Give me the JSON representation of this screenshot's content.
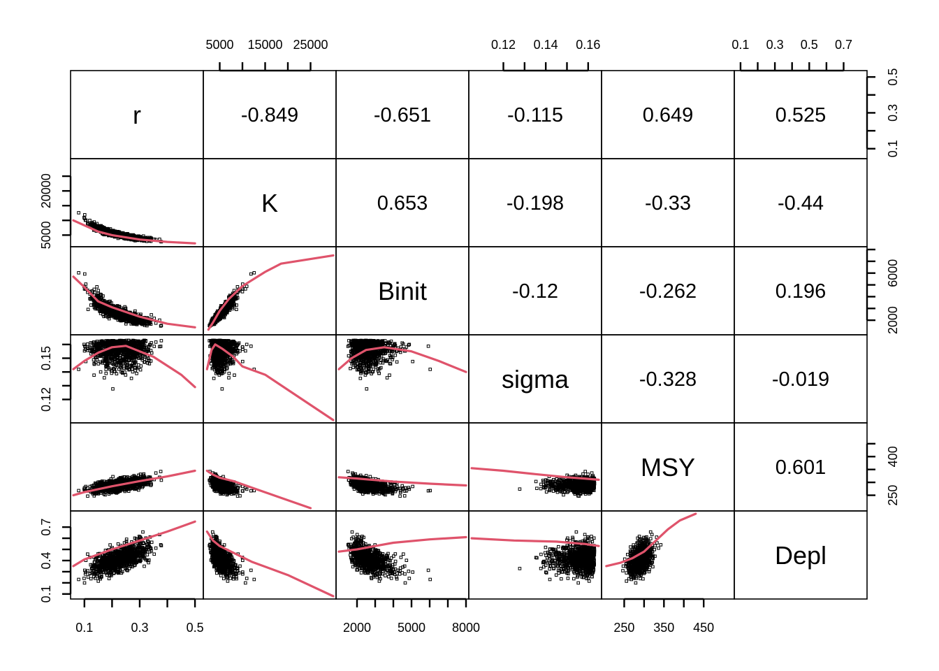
{
  "chart_data": {
    "type": "scatter",
    "subtype": "pairs-matrix",
    "variables": [
      "r",
      "K",
      "Binit",
      "sigma",
      "MSY",
      "Depl"
    ],
    "ranges": {
      "r": [
        0.06,
        0.52
      ],
      "K": [
        2000,
        30000
      ],
      "Binit": [
        1000,
        8000
      ],
      "sigma": [
        0.105,
        0.165
      ],
      "MSY": [
        200,
        520
      ],
      "Depl": [
        0.08,
        0.82
      ]
    },
    "ticks": {
      "r": [
        0.1,
        0.3,
        0.5
      ],
      "K": [
        5000,
        15000,
        25000
      ],
      "Binit": [
        2000,
        5000,
        8000
      ],
      "sigma": [
        0.12,
        0.14,
        0.16
      ],
      "MSY": [
        250,
        350,
        450
      ],
      "Depl": [
        0.1,
        0.3,
        0.5,
        0.7
      ]
    },
    "tick_labels": {
      "bottom": [
        {
          "var": "r",
          "labels": [
            "0.1",
            "0.3",
            "0.5"
          ],
          "values": [
            0.1,
            0.3,
            0.5
          ],
          "minor": [
            0.2,
            0.4
          ]
        },
        {
          "var": "Binit",
          "labels": [
            "2000",
            "5000",
            "8000"
          ],
          "values": [
            2000,
            5000,
            8000
          ],
          "minor": [
            3000,
            4000,
            6000,
            7000
          ]
        },
        {
          "var": "MSY",
          "labels": [
            "250",
            "350",
            "450"
          ],
          "values": [
            250,
            350,
            450
          ],
          "minor": [
            300,
            400
          ]
        }
      ],
      "top": [
        {
          "var": "K",
          "labels": [
            "5000",
            "15000",
            "25000"
          ],
          "values": [
            5000,
            15000,
            25000
          ],
          "minor": [
            10000,
            20000
          ]
        },
        {
          "var": "sigma",
          "labels": [
            "0.12",
            "0.14",
            "0.16"
          ],
          "values": [
            0.12,
            0.14,
            0.16
          ],
          "minor": [
            0.13,
            0.15
          ]
        },
        {
          "var": "Depl",
          "labels": [
            "0.1",
            "0.3",
            "0.5",
            "0.7"
          ],
          "values": [
            0.1,
            0.3,
            0.5,
            0.7
          ],
          "minor": [
            0.2,
            0.4,
            0.6
          ]
        }
      ],
      "left": [
        {
          "var": "K",
          "labels": [
            "5000",
            "20000"
          ],
          "values": [
            5000,
            20000
          ],
          "minor": [
            10000,
            15000,
            25000
          ]
        },
        {
          "var": "sigma",
          "labels": [
            "0.12",
            "0.15"
          ],
          "values": [
            0.12,
            0.15
          ],
          "minor": [
            0.13,
            0.14,
            0.16
          ]
        },
        {
          "var": "Depl",
          "labels": [
            "0.1",
            "0.4",
            "0.7"
          ],
          "values": [
            0.1,
            0.4,
            0.7
          ],
          "minor": [
            0.2,
            0.3,
            0.5,
            0.6
          ]
        }
      ],
      "right": [
        {
          "var": "r",
          "labels": [
            "0.1",
            "0.3",
            "0.5"
          ],
          "values": [
            0.1,
            0.3,
            0.5
          ],
          "minor": [
            0.2,
            0.4
          ]
        },
        {
          "var": "Binit",
          "labels": [
            "2000",
            "6000"
          ],
          "values": [
            2000,
            6000
          ],
          "minor": [
            3000,
            4000,
            5000,
            7000,
            8000
          ]
        },
        {
          "var": "MSY",
          "labels": [
            "250",
            "400"
          ],
          "values": [
            250,
            400
          ],
          "minor": [
            300,
            350,
            450
          ]
        }
      ]
    },
    "correlations": {
      "r-K": "-0.849",
      "r-Binit": "-0.651",
      "r-sigma": "-0.115",
      "r-MSY": "0.649",
      "r-Depl": "0.525",
      "K-Binit": "0.653",
      "K-sigma": "-0.198",
      "K-MSY": "-0.33",
      "K-Depl": "-0.44",
      "Binit-sigma": "-0.12",
      "Binit-MSY": "-0.262",
      "Binit-Depl": "0.196",
      "sigma-MSY": "-0.328",
      "sigma-Depl": "-0.019",
      "MSY-Depl": "0.601"
    },
    "smooth_lines": {
      "r-K": [
        [
          0.06,
          10000
        ],
        [
          0.1,
          8300
        ],
        [
          0.15,
          6200
        ],
        [
          0.2,
          5000
        ],
        [
          0.3,
          3500
        ],
        [
          0.4,
          2700
        ],
        [
          0.5,
          2200
        ]
      ],
      "r-Binit": [
        [
          0.06,
          5700
        ],
        [
          0.1,
          4800
        ],
        [
          0.15,
          3600
        ],
        [
          0.2,
          3100
        ],
        [
          0.3,
          2300
        ],
        [
          0.4,
          1700
        ],
        [
          0.5,
          1400
        ]
      ],
      "r-sigma": [
        [
          0.06,
          0.142
        ],
        [
          0.1,
          0.148
        ],
        [
          0.15,
          0.154
        ],
        [
          0.2,
          0.158
        ],
        [
          0.25,
          0.159
        ],
        [
          0.3,
          0.155
        ],
        [
          0.35,
          0.151
        ],
        [
          0.45,
          0.138
        ],
        [
          0.5,
          0.129
        ]
      ],
      "r-MSY": [
        [
          0.06,
          250
        ],
        [
          0.1,
          262
        ],
        [
          0.2,
          285
        ],
        [
          0.3,
          305
        ],
        [
          0.4,
          323
        ],
        [
          0.5,
          345
        ]
      ],
      "r-Depl": [
        [
          0.06,
          0.35
        ],
        [
          0.1,
          0.41
        ],
        [
          0.2,
          0.5
        ],
        [
          0.3,
          0.58
        ],
        [
          0.4,
          0.66
        ],
        [
          0.5,
          0.75
        ]
      ],
      "K-Binit": [
        [
          2500,
          1200
        ],
        [
          3500,
          1800
        ],
        [
          5000,
          2800
        ],
        [
          7000,
          3800
        ],
        [
          10000,
          4900
        ],
        [
          15000,
          6100
        ],
        [
          18500,
          6800
        ],
        [
          30000,
          7500
        ]
      ],
      "K-sigma": [
        [
          2200,
          0.142
        ],
        [
          3200,
          0.156
        ],
        [
          4000,
          0.16
        ],
        [
          5500,
          0.157
        ],
        [
          8000,
          0.151
        ],
        [
          10000,
          0.144
        ],
        [
          15000,
          0.138
        ],
        [
          30000,
          0.105
        ]
      ],
      "K-MSY": [
        [
          2200,
          345
        ],
        [
          3500,
          330
        ],
        [
          5000,
          318
        ],
        [
          8000,
          305
        ],
        [
          12000,
          280
        ],
        [
          18000,
          243
        ],
        [
          25000,
          200
        ]
      ],
      "K-Depl": [
        [
          2200,
          0.66
        ],
        [
          3500,
          0.58
        ],
        [
          5000,
          0.53
        ],
        [
          8000,
          0.47
        ],
        [
          12000,
          0.39
        ],
        [
          20000,
          0.27
        ],
        [
          30000,
          0.08
        ]
      ],
      "Binit-sigma": [
        [
          1000,
          0.142
        ],
        [
          1700,
          0.15
        ],
        [
          2500,
          0.156
        ],
        [
          3500,
          0.158
        ],
        [
          5000,
          0.155
        ],
        [
          6500,
          0.148
        ],
        [
          8000,
          0.14
        ]
      ],
      "Binit-MSY": [
        [
          1000,
          320
        ],
        [
          2000,
          315
        ],
        [
          3000,
          309
        ],
        [
          4000,
          303
        ],
        [
          6000,
          295
        ],
        [
          8000,
          288
        ]
      ],
      "Binit-Depl": [
        [
          1000,
          0.48
        ],
        [
          2000,
          0.5
        ],
        [
          3000,
          0.53
        ],
        [
          4000,
          0.56
        ],
        [
          6000,
          0.59
        ],
        [
          8000,
          0.61
        ]
      ],
      "sigma-MSY": [
        [
          0.105,
          355
        ],
        [
          0.12,
          345
        ],
        [
          0.135,
          332
        ],
        [
          0.15,
          320
        ],
        [
          0.158,
          315
        ],
        [
          0.165,
          310
        ]
      ],
      "sigma-Depl": [
        [
          0.105,
          0.6
        ],
        [
          0.125,
          0.58
        ],
        [
          0.145,
          0.57
        ],
        [
          0.158,
          0.55
        ],
        [
          0.165,
          0.53
        ]
      ],
      "MSY-Depl": [
        [
          205,
          0.35
        ],
        [
          240,
          0.38
        ],
        [
          270,
          0.42
        ],
        [
          300,
          0.48
        ],
        [
          330,
          0.58
        ],
        [
          360,
          0.68
        ],
        [
          390,
          0.76
        ],
        [
          430,
          0.82
        ]
      ]
    },
    "scatter_points": "sampled from the relationships implied by the correlations",
    "point_color": "#000000",
    "smooth_color": "#df536b",
    "grid": false,
    "legend": "none"
  }
}
